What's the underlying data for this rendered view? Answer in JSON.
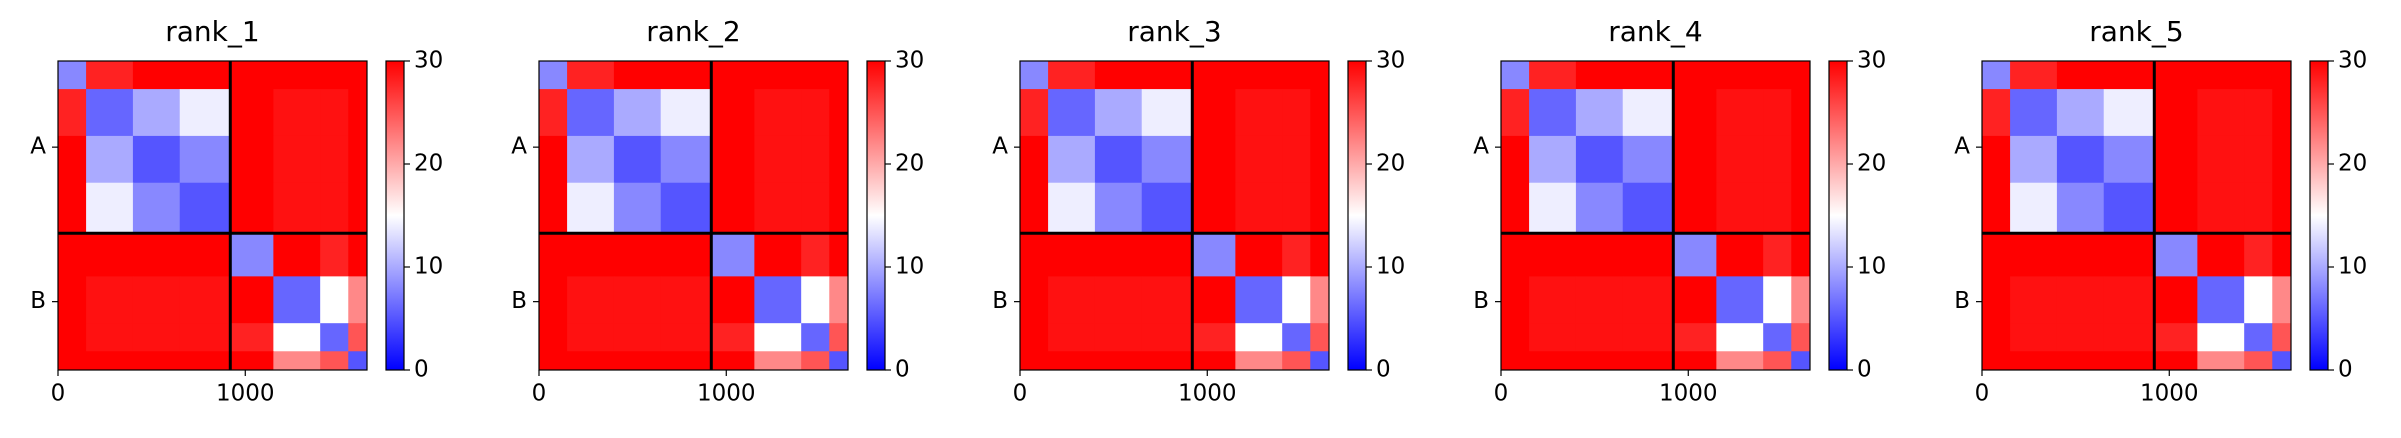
{
  "chart_data": [
    {
      "type": "heatmap",
      "title": "rank_1",
      "colormap": "bwr",
      "clim": [
        0,
        30
      ],
      "cticks": [
        0,
        10,
        20,
        30
      ],
      "xlim": [
        0,
        1650
      ],
      "xticks": [
        0,
        1000
      ],
      "ylim": [
        1650,
        0
      ],
      "yticks": [
        {
          "value": 460,
          "label": "A"
        },
        {
          "value": 1285,
          "label": "B"
        }
      ],
      "xbins": [
        0,
        150,
        400,
        650,
        920,
        1150,
        1400,
        1550,
        1650
      ],
      "ybins": [
        0,
        150,
        400,
        650,
        920,
        1150,
        1400,
        1550,
        1650
      ],
      "boundaries": [
        920
      ],
      "z": [
        [
          8,
          28,
          30,
          30,
          30,
          30,
          30,
          30
        ],
        [
          28,
          6,
          10,
          14,
          30,
          29,
          29,
          30
        ],
        [
          30,
          10,
          5,
          8,
          30,
          29,
          29,
          30
        ],
        [
          30,
          14,
          8,
          5,
          30,
          29,
          29,
          30
        ],
        [
          30,
          30,
          30,
          30,
          8,
          30,
          28,
          30
        ],
        [
          30,
          29,
          29,
          29,
          30,
          6,
          15,
          22
        ],
        [
          30,
          29,
          29,
          29,
          28,
          15,
          6,
          25
        ],
        [
          30,
          30,
          30,
          30,
          30,
          22,
          25,
          5
        ]
      ]
    },
    {
      "type": "heatmap",
      "title": "rank_2",
      "colormap": "bwr",
      "clim": [
        0,
        30
      ],
      "cticks": [
        0,
        10,
        20,
        30
      ],
      "xlim": [
        0,
        1650
      ],
      "xticks": [
        0,
        1000
      ],
      "ylim": [
        1650,
        0
      ],
      "yticks": [
        {
          "value": 460,
          "label": "A"
        },
        {
          "value": 1285,
          "label": "B"
        }
      ],
      "xbins": [
        0,
        150,
        400,
        650,
        920,
        1150,
        1400,
        1550,
        1650
      ],
      "ybins": [
        0,
        150,
        400,
        650,
        920,
        1150,
        1400,
        1550,
        1650
      ],
      "boundaries": [
        920
      ],
      "z": [
        [
          8,
          28,
          30,
          30,
          30,
          30,
          30,
          30
        ],
        [
          28,
          6,
          10,
          14,
          30,
          29,
          29,
          30
        ],
        [
          30,
          10,
          5,
          8,
          30,
          29,
          29,
          30
        ],
        [
          30,
          14,
          8,
          5,
          30,
          29,
          29,
          30
        ],
        [
          30,
          30,
          30,
          30,
          8,
          30,
          28,
          30
        ],
        [
          30,
          29,
          29,
          29,
          30,
          6,
          15,
          22
        ],
        [
          30,
          29,
          29,
          29,
          28,
          15,
          6,
          25
        ],
        [
          30,
          30,
          30,
          30,
          30,
          22,
          25,
          5
        ]
      ]
    },
    {
      "type": "heatmap",
      "title": "rank_3",
      "colormap": "bwr",
      "clim": [
        0,
        30
      ],
      "cticks": [
        0,
        10,
        20,
        30
      ],
      "xlim": [
        0,
        1650
      ],
      "xticks": [
        0,
        1000
      ],
      "ylim": [
        1650,
        0
      ],
      "yticks": [
        {
          "value": 460,
          "label": "A"
        },
        {
          "value": 1285,
          "label": "B"
        }
      ],
      "xbins": [
        0,
        150,
        400,
        650,
        920,
        1150,
        1400,
        1550,
        1650
      ],
      "ybins": [
        0,
        150,
        400,
        650,
        920,
        1150,
        1400,
        1550,
        1650
      ],
      "boundaries": [
        920
      ],
      "z": [
        [
          8,
          28,
          30,
          30,
          30,
          30,
          30,
          30
        ],
        [
          28,
          6,
          10,
          14,
          30,
          29,
          29,
          30
        ],
        [
          30,
          10,
          5,
          8,
          30,
          29,
          29,
          30
        ],
        [
          30,
          14,
          8,
          5,
          30,
          29,
          29,
          30
        ],
        [
          30,
          30,
          30,
          30,
          8,
          30,
          28,
          30
        ],
        [
          30,
          29,
          29,
          29,
          30,
          6,
          15,
          22
        ],
        [
          30,
          29,
          29,
          29,
          28,
          15,
          6,
          25
        ],
        [
          30,
          30,
          30,
          30,
          30,
          22,
          25,
          5
        ]
      ]
    },
    {
      "type": "heatmap",
      "title": "rank_4",
      "colormap": "bwr",
      "clim": [
        0,
        30
      ],
      "cticks": [
        0,
        10,
        20,
        30
      ],
      "xlim": [
        0,
        1650
      ],
      "xticks": [
        0,
        1000
      ],
      "ylim": [
        1650,
        0
      ],
      "yticks": [
        {
          "value": 460,
          "label": "A"
        },
        {
          "value": 1285,
          "label": "B"
        }
      ],
      "xbins": [
        0,
        150,
        400,
        650,
        920,
        1150,
        1400,
        1550,
        1650
      ],
      "ybins": [
        0,
        150,
        400,
        650,
        920,
        1150,
        1400,
        1550,
        1650
      ],
      "boundaries": [
        920
      ],
      "z": [
        [
          8,
          28,
          30,
          30,
          30,
          30,
          30,
          30
        ],
        [
          28,
          6,
          10,
          14,
          30,
          29,
          29,
          30
        ],
        [
          30,
          10,
          5,
          8,
          30,
          29,
          29,
          30
        ],
        [
          30,
          14,
          8,
          5,
          30,
          29,
          29,
          30
        ],
        [
          30,
          30,
          30,
          30,
          8,
          30,
          28,
          30
        ],
        [
          30,
          29,
          29,
          29,
          30,
          6,
          15,
          22
        ],
        [
          30,
          29,
          29,
          29,
          28,
          15,
          6,
          25
        ],
        [
          30,
          30,
          30,
          30,
          30,
          22,
          25,
          5
        ]
      ]
    },
    {
      "type": "heatmap",
      "title": "rank_5",
      "colormap": "bwr",
      "clim": [
        0,
        30
      ],
      "cticks": [
        0,
        10,
        20,
        30
      ],
      "xlim": [
        0,
        1650
      ],
      "xticks": [
        0,
        1000
      ],
      "ylim": [
        1650,
        0
      ],
      "yticks": [
        {
          "value": 460,
          "label": "A"
        },
        {
          "value": 1285,
          "label": "B"
        }
      ],
      "xbins": [
        0,
        150,
        400,
        650,
        920,
        1150,
        1400,
        1550,
        1650
      ],
      "ybins": [
        0,
        150,
        400,
        650,
        920,
        1150,
        1400,
        1550,
        1650
      ],
      "boundaries": [
        920
      ],
      "z": [
        [
          8,
          28,
          30,
          30,
          30,
          30,
          30,
          30
        ],
        [
          28,
          6,
          10,
          14,
          30,
          29,
          29,
          30
        ],
        [
          30,
          10,
          5,
          8,
          30,
          29,
          29,
          30
        ],
        [
          30,
          14,
          8,
          5,
          30,
          29,
          29,
          30
        ],
        [
          30,
          30,
          30,
          30,
          8,
          30,
          28,
          30
        ],
        [
          30,
          29,
          29,
          29,
          30,
          6,
          15,
          22
        ],
        [
          30,
          29,
          29,
          29,
          28,
          15,
          6,
          25
        ],
        [
          30,
          30,
          30,
          30,
          30,
          22,
          25,
          5
        ]
      ]
    }
  ]
}
